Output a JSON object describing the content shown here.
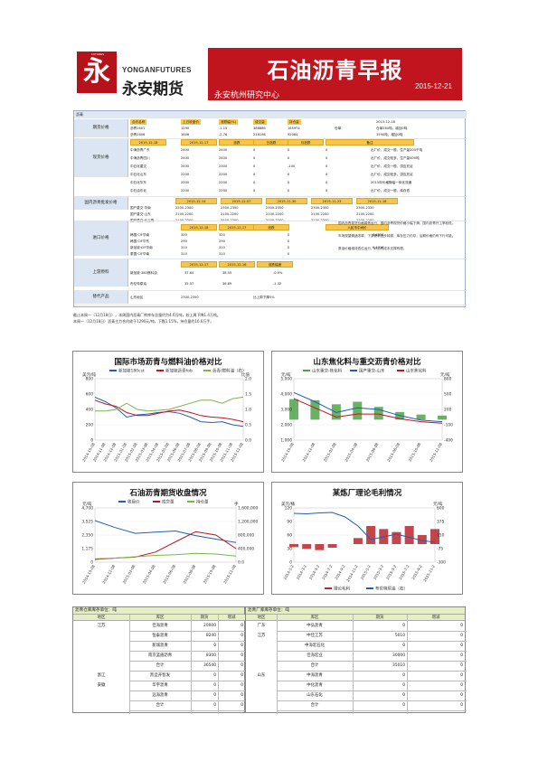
{
  "header": {
    "logo_small": "FUTURES",
    "logo_en": "YONGANFUTURES",
    "logo_cn": "永安期货",
    "title": "石油沥青早报",
    "department": "永安杭州研究中心",
    "date": "2015-12-21"
  },
  "table": {
    "section": "沥青",
    "labels": [
      "期货价格",
      "现货价格",
      "国内沥青批发价格",
      "进口价格",
      "上游原料",
      "替代产品"
    ],
    "futures_header": [
      "合约名称",
      "上日收盘价",
      "涨跌幅(%)",
      "成交量",
      "持仓量"
    ],
    "futures_rows": [
      [
        "沥青1601",
        "1290",
        "-1.15",
        "388886",
        "165974"
      ],
      [
        "沥青1606",
        "1606",
        "-2.76",
        "218198",
        "92084"
      ]
    ],
    "futures_side_label": "仓单",
    "futures_notes": [
      "2015-12-18",
      "仓单260吨，增加0吨",
      "1590吨，增加0吨"
    ],
    "spot_header": [
      "2015-12-18",
      "2015-12-17",
      "涨跌",
      "日涨跌",
      "月涨跌",
      "备注"
    ],
    "spot_rows": [
      [
        "中海沥青广东",
        "2400",
        "2400",
        "0",
        "0",
        "0"
      ],
      [
        "中海沥青四川",
        "2400",
        "2400",
        "0",
        "0",
        "0"
      ],
      [
        "中石化重交",
        "2400",
        "2300",
        "0",
        "-100",
        "0"
      ],
      [
        "中石化山东",
        "2200",
        "2200",
        "0",
        "0",
        "0"
      ],
      [
        "中石化华东",
        "2200",
        "2200",
        "0",
        "0",
        "0"
      ],
      [
        "中石油东北",
        "2200",
        "2200",
        "0",
        "0",
        "0"
      ]
    ],
    "spot_notes": [
      "出厂价，成交一般，生产量200千吨",
      "出厂价，成交较多，生产量400吨",
      "出厂价，成交一般，供应充足",
      "出厂价，成交较多，供应充足",
      "2015年价格降幅一体化流通",
      "出厂价，成交一般，库存低"
    ],
    "wholesale_header": [
      "2015-12-14",
      "2015-12-07",
      "2015-11-30",
      "2015-11-23",
      "2015-11-16"
    ],
    "wholesale_rows": [
      [
        "国产重交·华南",
        "2200-2300",
        "2300-2350",
        "2300-2350",
        "2300-2350",
        "2300-2350"
      ],
      [
        "国产重交·山东",
        "2100-2200",
        "2100-2200",
        "2100-2200",
        "2100-2200",
        "2100-2200"
      ],
      [
        "国产重交·长三角",
        "2100-2200",
        "2100-2200",
        "2100-2200",
        "2100-2200",
        "2100-2200"
      ]
    ],
    "import_header": [
      "2015-12-18",
      "2015-12-17",
      "涨跌",
      "人民币中间价"
    ],
    "import_rows": [
      [
        "韩国·CIF华南",
        "320",
        "320",
        "0",
        "6.4854"
      ],
      [
        "韩国·CIF华东",
        "290",
        "290",
        "0",
        ""
      ],
      [
        "新加坡·CIF华南",
        "310",
        "310",
        "0",
        "6.4717"
      ],
      [
        "泰国·CIF华南",
        "310",
        "310",
        "0",
        ""
      ]
    ],
    "upstream_header": [
      "2015-12-17",
      "2015-12-16",
      "涨跌幅度"
    ],
    "upstream_rows": [
      [
        "新加坡·380燃料油",
        "37.64",
        "38.55",
        "-0.9%"
      ],
      [
        "布伦特原油",
        "35.57",
        "36.89",
        "-1.32"
      ]
    ],
    "upstream_notes": [
      "国内沥青现货价格弱势运行，国内沥青现货价格小幅下滑，国内沥青开工率较低。",
      "市场观望情绪浓厚，下游需求逐步转弱，库存压力仍存，后期价格仍有下行可能。",
      "原油价格维持低位运行，对沥青成本支撑有限。"
    ],
    "sub_row": [
      "山东地区",
      "2300-2350",
      "比上周下降5%"
    ]
  },
  "caption": [
    "截止本周一（12月18日），本周国内沥青厂库库存总量约为4.6万吨，较上周下降1.4万吨。",
    "本周一（12月18日）沥青主力合约收于1290元/吨，下跌1.15%，持仓量约16.6万手。"
  ],
  "charts": {
    "c1": {
      "title": "国际市场沥青与燃料油价格对比",
      "legend": [
        "新加坡180cst",
        "新加坡沥青fob",
        "沥青/燃料油（右）"
      ],
      "unit_left": "美元/吨",
      "unit_right": "比值"
    },
    "c2": {
      "title": "山东焦化料与重交沥青价格对比",
      "legend": [
        "山东重交-焦化料",
        "国产重交-山东",
        "山东焦化料"
      ],
      "unit_left": "元/吨",
      "unit_right": "元/吨"
    },
    "c3": {
      "title": "石油沥青期货收盘情况",
      "legend": [
        "收盘价",
        "成交量",
        "持仓量"
      ],
      "unit_left": "元/吨",
      "unit_right": "手"
    },
    "c4": {
      "title": "某炼厂理论毛利情况",
      "legend": [
        "理论毛利",
        "布伦特原油（右）"
      ],
      "unit_left": "美元/桶",
      "unit_right": "元/吨"
    }
  },
  "chart_data": [
    {
      "type": "line",
      "title": "国际市场沥青与燃料油价格对比",
      "ylim": [
        0,
        800
      ],
      "y2lim": [
        0,
        2
      ],
      "x": [
        "2014-10-08",
        "2014-11-08",
        "2014-12-08",
        "2015-01-08",
        "2015-02-08",
        "2015-03-08",
        "2015-04-08",
        "2015-05-08",
        "2015-06-08",
        "2015-07-08",
        "2015-08-08",
        "2015-09-08",
        "2015-10-08",
        "2015-11-08",
        "2015-12-08"
      ],
      "series": [
        {
          "name": "新加坡180cst",
          "values": [
            560,
            500,
            420,
            300,
            330,
            340,
            360,
            370,
            350,
            300,
            240,
            230,
            240,
            200,
            180
          ]
        },
        {
          "name": "新加坡沥青fob",
          "values": [
            520,
            470,
            440,
            360,
            320,
            320,
            350,
            380,
            390,
            360,
            320,
            300,
            290,
            270,
            240
          ]
        },
        {
          "name": "沥青/燃料油（右）",
          "values": [
            0.95,
            0.95,
            1.0,
            1.2,
            1.0,
            0.95,
            0.97,
            1.0,
            1.1,
            1.2,
            1.3,
            1.3,
            1.2,
            1.35,
            1.4
          ]
        }
      ]
    },
    {
      "type": "line",
      "title": "山东焦化料与重交沥青价格对比",
      "ylim": [
        1000,
        5000
      ],
      "y2lim": [
        -400,
        800
      ],
      "x": [
        "2014-10-08",
        "2014-12-08",
        "2015-02-08",
        "2015-04-08",
        "2015-06-08",
        "2015-08-08",
        "2015-10-08",
        "2015-12-08"
      ],
      "series": [
        {
          "name": "山东重交-焦化料",
          "values": [
            400,
            380,
            300,
            350,
            250,
            150,
            100,
            80
          ]
        },
        {
          "name": "国产重交-山东",
          "values": [
            4100,
            3500,
            2800,
            3100,
            3000,
            2600,
            2300,
            2200
          ]
        },
        {
          "name": "山东焦化料",
          "values": [
            3700,
            3100,
            2500,
            2700,
            2700,
            2400,
            2200,
            2100
          ]
        }
      ]
    },
    {
      "type": "line",
      "title": "石油沥青期货收盘情况",
      "ylim": [
        0,
        4700
      ],
      "y2lim": [
        0,
        1600000
      ],
      "x": [
        "2014-10-08",
        "2014-12-08",
        "2015-02-08",
        "2015-04-08",
        "2015-06-08",
        "2015-08-08",
        "2015-10-08",
        "2015-12-08"
      ],
      "series": [
        {
          "name": "收盘价",
          "values": [
            3600,
            3000,
            2500,
            2600,
            2700,
            2300,
            2000,
            1700
          ]
        },
        {
          "name": "成交量",
          "values": [
            80000,
            120000,
            150000,
            300000,
            600000,
            900000,
            800000,
            400000
          ]
        },
        {
          "name": "持仓量",
          "values": [
            100000,
            120000,
            160000,
            200000,
            220000,
            260000,
            240000,
            180000
          ]
        }
      ]
    },
    {
      "type": "bar",
      "title": "某炼厂理论毛利情况",
      "ylim": [
        0,
        120
      ],
      "y2lim": [
        -300,
        600
      ],
      "x": [
        "2014-1-2",
        "2014-3-2",
        "2014-5-2",
        "2014-7-2",
        "2014-9-2",
        "2014-11-2",
        "2015-1-2",
        "2015-3-2",
        "2015-5-2",
        "2015-7-2",
        "2015-9-2",
        "2015-11-2"
      ],
      "series": [
        {
          "name": "理论毛利",
          "values": [
            -50,
            -80,
            -100,
            -60,
            0,
            100,
            300,
            250,
            200,
            300,
            150,
            250
          ]
        },
        {
          "name": "布伦特原油（右）",
          "values": [
            108,
            107,
            109,
            110,
            100,
            80,
            50,
            56,
            62,
            55,
            48,
            44
          ]
        }
      ]
    }
  ],
  "storage_factory": {
    "title": "沥青仓库库存单位：吨",
    "headers": [
      "地区",
      "库区",
      "期货",
      "增减"
    ],
    "rows": [
      [
        "江苏",
        "佳海沥青",
        "20000",
        "0"
      ],
      [
        "",
        "恒泰沥青",
        "8240",
        "0"
      ],
      [
        "",
        "新城沥青",
        "0",
        "0"
      ],
      [
        "",
        "南京蓝盾沥青",
        "8300",
        "0"
      ],
      [
        "",
        "合计",
        "36540",
        "0"
      ],
      [
        "浙江",
        "凯旦开智发",
        "0",
        "0"
      ],
      [
        "安徽",
        "华宇沥青",
        "0",
        "0"
      ],
      [
        "",
        "远海沥青",
        "0",
        "0"
      ],
      [
        "",
        "合计",
        "0",
        "0"
      ]
    ]
  },
  "storage_plant": {
    "title": "沥青厂库库存单位：吨",
    "headers": [
      "地区",
      "库区",
      "期货",
      "增减"
    ],
    "rows": [
      [
        "广东",
        "中弘沥青",
        "0",
        "0"
      ],
      [
        "江苏",
        "中佳江苏",
        "5010",
        "0"
      ],
      [
        "",
        "中海宏石化",
        "0",
        "0"
      ],
      [
        "",
        "佳海宏业",
        "30000",
        "0"
      ],
      [
        "",
        "合计",
        "35010",
        "0"
      ],
      [
        "山东",
        "中海沥青",
        "0",
        "0"
      ],
      [
        "",
        "中化沥青",
        "0",
        "0"
      ],
      [
        "",
        "山东石化",
        "0",
        "0"
      ],
      [
        "",
        "合计",
        "0",
        "0"
      ]
    ]
  }
}
